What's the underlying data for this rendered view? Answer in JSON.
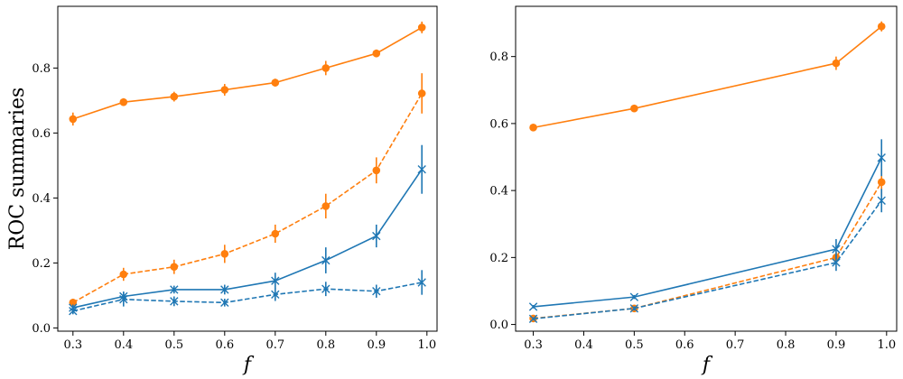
{
  "chart_data": [
    {
      "type": "line",
      "title": "",
      "xlabel": "f",
      "ylabel": "ROC summaries",
      "xlim": [
        0.27,
        1.02
      ],
      "ylim": [
        -0.01,
        0.99
      ],
      "xticks": [
        0.3,
        0.4,
        0.5,
        0.6,
        0.7,
        0.8,
        0.9,
        1.0
      ],
      "xtick_labels": [
        "0.3",
        "0.4",
        "0.5",
        "0.6",
        "0.7",
        "0.8",
        "0.9",
        "1.0"
      ],
      "yticks": [
        0.0,
        0.2,
        0.4,
        0.6,
        0.8
      ],
      "ytick_labels": [
        "0.0",
        "0.2",
        "0.4",
        "0.6",
        "0.8"
      ],
      "grid": false,
      "legend": "none",
      "x": [
        0.3,
        0.4,
        0.5,
        0.6,
        0.7,
        0.8,
        0.9,
        0.99
      ],
      "series": [
        {
          "color": "#ff7f0e",
          "linestyle": "solid",
          "marker": "circle",
          "values": [
            0.643,
            0.695,
            0.712,
            0.733,
            0.755,
            0.8,
            0.845,
            0.925
          ],
          "errors": [
            0.02,
            0.012,
            0.015,
            0.018,
            0.012,
            0.022,
            0.012,
            0.018
          ]
        },
        {
          "color": "#ff7f0e",
          "linestyle": "dashed",
          "marker": "circle",
          "values": [
            0.078,
            0.165,
            0.188,
            0.228,
            0.29,
            0.375,
            0.485,
            0.722
          ],
          "errors": [
            0.012,
            0.02,
            0.022,
            0.028,
            0.028,
            0.038,
            0.04,
            0.062
          ]
        },
        {
          "color": "#1f77b4",
          "linestyle": "solid",
          "marker": "x",
          "values": [
            0.062,
            0.097,
            0.118,
            0.118,
            0.145,
            0.208,
            0.283,
            0.488
          ],
          "errors": [
            0.01,
            0.015,
            0.012,
            0.015,
            0.025,
            0.04,
            0.035,
            0.075
          ]
        },
        {
          "color": "#1f77b4",
          "linestyle": "dashed",
          "marker": "x",
          "values": [
            0.052,
            0.088,
            0.082,
            0.078,
            0.103,
            0.12,
            0.113,
            0.14
          ],
          "errors": [
            0.01,
            0.022,
            0.015,
            0.012,
            0.02,
            0.022,
            0.02,
            0.038
          ]
        }
      ]
    },
    {
      "type": "line",
      "title": "",
      "xlabel": "f",
      "ylabel": "",
      "xlim": [
        0.265,
        1.02
      ],
      "ylim": [
        -0.02,
        0.95
      ],
      "xticks": [
        0.3,
        0.4,
        0.5,
        0.6,
        0.7,
        0.8,
        0.9,
        1.0
      ],
      "xtick_labels": [
        "0.3",
        "0.4",
        "0.5",
        "0.6",
        "0.7",
        "0.8",
        "0.9",
        "1.0"
      ],
      "yticks": [
        0.0,
        0.2,
        0.4,
        0.6,
        0.8
      ],
      "ytick_labels": [
        "0.0",
        "0.2",
        "0.4",
        "0.6",
        "0.8"
      ],
      "grid": false,
      "legend": "none",
      "x": [
        0.3,
        0.5,
        0.9,
        0.99
      ],
      "series": [
        {
          "color": "#ff7f0e",
          "linestyle": "solid",
          "marker": "circle",
          "values": [
            0.588,
            0.645,
            0.78,
            0.89
          ],
          "errors": [
            0.008,
            0.008,
            0.02,
            0.015
          ]
        },
        {
          "color": "#ff7f0e",
          "linestyle": "dashed",
          "marker": "circle",
          "values": [
            0.018,
            0.048,
            0.2,
            0.425
          ],
          "errors": [
            0.005,
            0.006,
            0.015,
            0.04
          ]
        },
        {
          "color": "#1f77b4",
          "linestyle": "solid",
          "marker": "x",
          "values": [
            0.053,
            0.082,
            0.225,
            0.498
          ],
          "errors": [
            0.005,
            0.006,
            0.03,
            0.055
          ]
        },
        {
          "color": "#1f77b4",
          "linestyle": "dashed",
          "marker": "x",
          "values": [
            0.017,
            0.048,
            0.185,
            0.37
          ],
          "errors": [
            0.004,
            0.006,
            0.025,
            0.035
          ]
        }
      ]
    }
  ]
}
